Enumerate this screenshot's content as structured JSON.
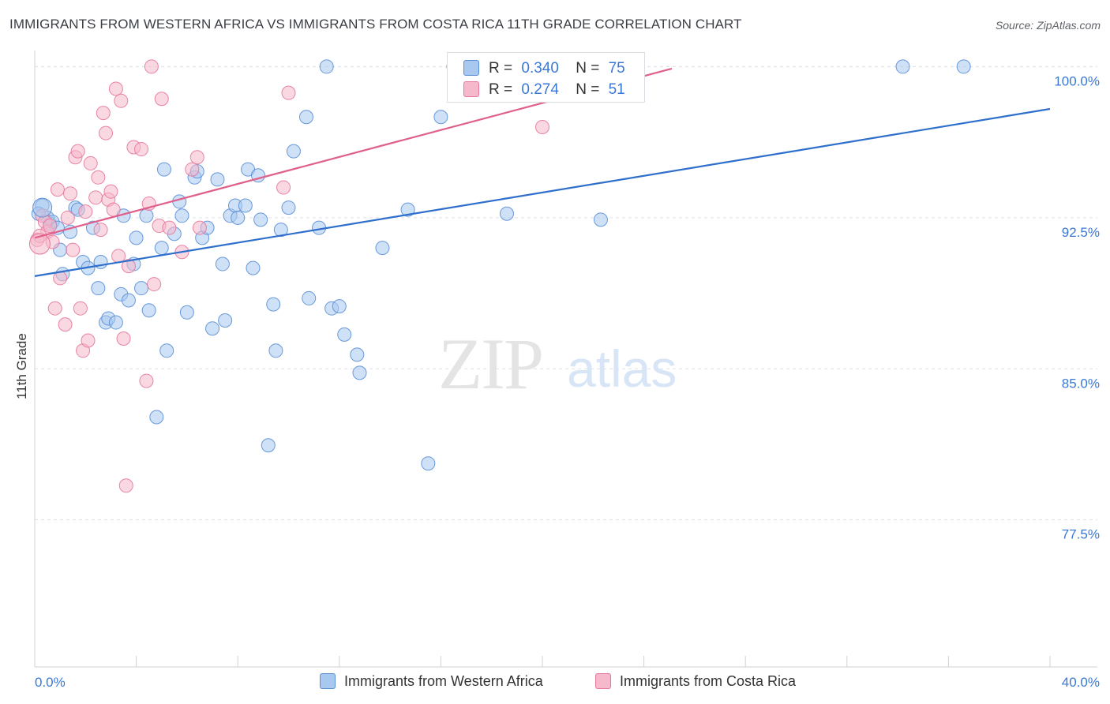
{
  "title": "IMMIGRANTS FROM WESTERN AFRICA VS IMMIGRANTS FROM COSTA RICA 11TH GRADE CORRELATION CHART",
  "source": "Source: ZipAtlas.com",
  "watermark": {
    "zip": "ZIP",
    "atlas": "atlas"
  },
  "legend": {
    "rows": [
      {
        "r_label": "R =",
        "r_value": "0.340",
        "n_label": "N =",
        "n_value": "75"
      },
      {
        "r_label": "R =",
        "r_value": "0.274",
        "n_label": "N =",
        "n_value": "51"
      }
    ]
  },
  "colors": {
    "blue_fill": "#a8c8f0",
    "blue_stroke": "#5b8fd6",
    "blue_line": "#2f6fcc",
    "pink_fill": "#f6b8cb",
    "pink_stroke": "#e5789c",
    "pink_line": "#e0608c",
    "tick_label": "#3a78d6",
    "grid": "#dfe1e5"
  },
  "chart_data": {
    "type": "scatter",
    "title": "IMMIGRANTS FROM WESTERN AFRICA VS IMMIGRANTS FROM COSTA RICA 11TH GRADE CORRELATION CHART",
    "xlabel": "",
    "ylabel": "11th Grade",
    "xlim": [
      0,
      40
    ],
    "ylim": [
      70.2,
      100.8
    ],
    "x_tick_labels": [
      {
        "value": 0,
        "label": "0.0%"
      },
      {
        "value": 40,
        "label": "40.0%"
      }
    ],
    "x_minor_ticks": [
      0,
      4,
      8,
      12,
      16,
      20,
      24,
      28,
      32,
      36,
      40
    ],
    "y_ticks": [
      {
        "value": 77.5,
        "label": "77.5%"
      },
      {
        "value": 85.0,
        "label": "85.0%"
      },
      {
        "value": 92.5,
        "label": "92.5%"
      },
      {
        "value": 100.0,
        "label": "100.0%"
      }
    ],
    "grid": true,
    "legend_position": "top-center",
    "series": [
      {
        "name": "Immigrants from Western Africa",
        "color": "blue",
        "trend": {
          "x": [
            0,
            40
          ],
          "y": [
            89.6,
            97.9
          ]
        },
        "points": [
          {
            "x": 0.3,
            "y": 93.1
          },
          {
            "x": 0.5,
            "y": 92.5
          },
          {
            "x": 0.6,
            "y": 92.2
          },
          {
            "x": 0.7,
            "y": 92.3
          },
          {
            "x": 0.9,
            "y": 92.0
          },
          {
            "x": 1.0,
            "y": 90.9
          },
          {
            "x": 1.1,
            "y": 89.7
          },
          {
            "x": 1.4,
            "y": 91.8
          },
          {
            "x": 1.6,
            "y": 93.0
          },
          {
            "x": 1.7,
            "y": 92.9
          },
          {
            "x": 1.9,
            "y": 90.3
          },
          {
            "x": 2.1,
            "y": 90.0
          },
          {
            "x": 2.3,
            "y": 92.0
          },
          {
            "x": 2.5,
            "y": 89.0
          },
          {
            "x": 2.6,
            "y": 90.3
          },
          {
            "x": 2.8,
            "y": 87.3
          },
          {
            "x": 2.9,
            "y": 87.5
          },
          {
            "x": 3.2,
            "y": 87.3
          },
          {
            "x": 3.4,
            "y": 88.7
          },
          {
            "x": 3.5,
            "y": 92.6
          },
          {
            "x": 3.7,
            "y": 88.4
          },
          {
            "x": 3.9,
            "y": 90.2
          },
          {
            "x": 4.0,
            "y": 91.5
          },
          {
            "x": 4.2,
            "y": 89.0
          },
          {
            "x": 4.4,
            "y": 92.6
          },
          {
            "x": 4.5,
            "y": 87.9
          },
          {
            "x": 4.8,
            "y": 82.6
          },
          {
            "x": 5.0,
            "y": 91.0
          },
          {
            "x": 5.1,
            "y": 94.9
          },
          {
            "x": 5.2,
            "y": 85.9
          },
          {
            "x": 5.5,
            "y": 91.7
          },
          {
            "x": 5.7,
            "y": 93.3
          },
          {
            "x": 5.8,
            "y": 92.6
          },
          {
            "x": 6.0,
            "y": 87.8
          },
          {
            "x": 6.3,
            "y": 94.5
          },
          {
            "x": 6.4,
            "y": 94.8
          },
          {
            "x": 6.6,
            "y": 91.5
          },
          {
            "x": 6.8,
            "y": 92.0
          },
          {
            "x": 7.0,
            "y": 87.0
          },
          {
            "x": 7.2,
            "y": 94.4
          },
          {
            "x": 7.4,
            "y": 90.2
          },
          {
            "x": 7.5,
            "y": 87.4
          },
          {
            "x": 7.7,
            "y": 92.6
          },
          {
            "x": 7.9,
            "y": 93.1
          },
          {
            "x": 8.0,
            "y": 92.5
          },
          {
            "x": 8.3,
            "y": 93.1
          },
          {
            "x": 8.4,
            "y": 94.9
          },
          {
            "x": 8.6,
            "y": 90.0
          },
          {
            "x": 8.8,
            "y": 94.6
          },
          {
            "x": 8.9,
            "y": 92.4
          },
          {
            "x": 9.2,
            "y": 81.2
          },
          {
            "x": 9.4,
            "y": 88.2
          },
          {
            "x": 9.5,
            "y": 85.9
          },
          {
            "x": 9.7,
            "y": 91.9
          },
          {
            "x": 10.0,
            "y": 93.0
          },
          {
            "x": 10.2,
            "y": 95.8
          },
          {
            "x": 10.7,
            "y": 97.5
          },
          {
            "x": 10.8,
            "y": 88.5
          },
          {
            "x": 11.2,
            "y": 92.0
          },
          {
            "x": 11.5,
            "y": 100.0
          },
          {
            "x": 11.7,
            "y": 88.0
          },
          {
            "x": 12.0,
            "y": 88.1
          },
          {
            "x": 12.2,
            "y": 86.7
          },
          {
            "x": 12.7,
            "y": 85.7
          },
          {
            "x": 12.8,
            "y": 84.8
          },
          {
            "x": 13.7,
            "y": 91.0
          },
          {
            "x": 14.7,
            "y": 92.9
          },
          {
            "x": 15.5,
            "y": 80.3
          },
          {
            "x": 16.0,
            "y": 97.5
          },
          {
            "x": 16.5,
            "y": 100.0
          },
          {
            "x": 18.6,
            "y": 92.7
          },
          {
            "x": 22.3,
            "y": 92.4
          },
          {
            "x": 34.2,
            "y": 100.0
          },
          {
            "x": 36.6,
            "y": 100.0
          },
          {
            "x": 0.15,
            "y": 92.7
          }
        ]
      },
      {
        "name": "Immigrants from Costa Rica",
        "color": "pink",
        "trend": {
          "x": [
            0,
            25.1
          ],
          "y": [
            91.5,
            99.9
          ]
        },
        "points": [
          {
            "x": 0.1,
            "y": 91.4
          },
          {
            "x": 0.3,
            "y": 92.6
          },
          {
            "x": 0.4,
            "y": 92.3
          },
          {
            "x": 0.5,
            "y": 91.8
          },
          {
            "x": 0.6,
            "y": 92.1
          },
          {
            "x": 0.7,
            "y": 91.3
          },
          {
            "x": 0.8,
            "y": 88.0
          },
          {
            "x": 0.9,
            "y": 93.9
          },
          {
            "x": 1.0,
            "y": 89.5
          },
          {
            "x": 1.2,
            "y": 87.2
          },
          {
            "x": 1.3,
            "y": 92.5
          },
          {
            "x": 1.4,
            "y": 93.7
          },
          {
            "x": 1.5,
            "y": 90.9
          },
          {
            "x": 1.6,
            "y": 95.5
          },
          {
            "x": 1.7,
            "y": 95.8
          },
          {
            "x": 1.8,
            "y": 88.0
          },
          {
            "x": 1.9,
            "y": 85.9
          },
          {
            "x": 2.0,
            "y": 92.8
          },
          {
            "x": 2.1,
            "y": 86.4
          },
          {
            "x": 2.2,
            "y": 95.2
          },
          {
            "x": 2.4,
            "y": 93.5
          },
          {
            "x": 2.5,
            "y": 94.5
          },
          {
            "x": 2.6,
            "y": 91.9
          },
          {
            "x": 2.7,
            "y": 97.7
          },
          {
            "x": 2.8,
            "y": 96.7
          },
          {
            "x": 2.9,
            "y": 93.4
          },
          {
            "x": 3.0,
            "y": 93.8
          },
          {
            "x": 3.1,
            "y": 92.9
          },
          {
            "x": 3.2,
            "y": 98.9
          },
          {
            "x": 3.3,
            "y": 90.6
          },
          {
            "x": 3.4,
            "y": 98.3
          },
          {
            "x": 3.5,
            "y": 86.5
          },
          {
            "x": 3.6,
            "y": 79.2
          },
          {
            "x": 3.7,
            "y": 90.1
          },
          {
            "x": 3.9,
            "y": 96.0
          },
          {
            "x": 4.2,
            "y": 95.9
          },
          {
            "x": 4.4,
            "y": 84.4
          },
          {
            "x": 4.5,
            "y": 93.2
          },
          {
            "x": 4.6,
            "y": 100.0
          },
          {
            "x": 4.7,
            "y": 89.2
          },
          {
            "x": 4.9,
            "y": 92.1
          },
          {
            "x": 5.0,
            "y": 98.4
          },
          {
            "x": 5.3,
            "y": 92.0
          },
          {
            "x": 5.8,
            "y": 90.8
          },
          {
            "x": 6.2,
            "y": 94.9
          },
          {
            "x": 6.4,
            "y": 95.5
          },
          {
            "x": 6.5,
            "y": 92.0
          },
          {
            "x": 9.8,
            "y": 94.0
          },
          {
            "x": 10.0,
            "y": 98.7
          },
          {
            "x": 20.0,
            "y": 97.0
          },
          {
            "x": 0.2,
            "y": 91.6
          }
        ]
      }
    ]
  },
  "bottom_legend": [
    {
      "label": "Immigrants from Western Africa"
    },
    {
      "label": "Immigrants from Costa Rica"
    }
  ]
}
